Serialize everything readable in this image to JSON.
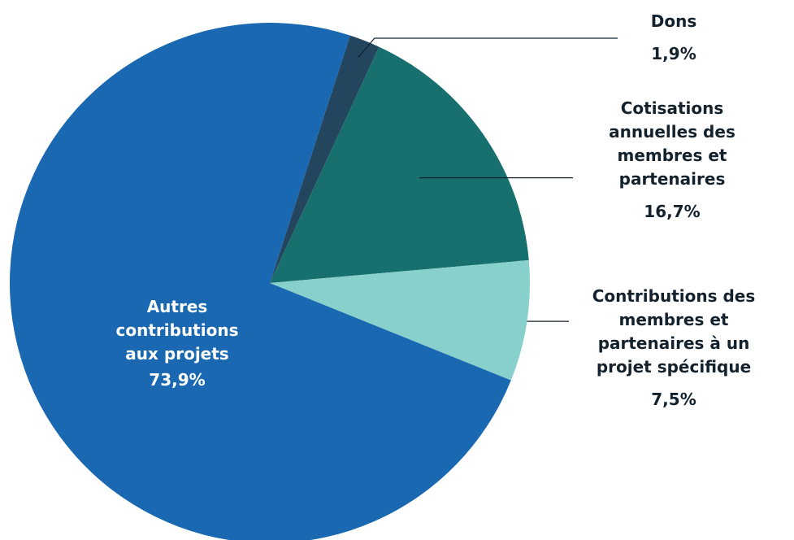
{
  "chart_data": {
    "type": "pie",
    "title": "",
    "colors": {
      "autres": "#1a68b1",
      "dons": "#23455e",
      "cotisations": "#17706d",
      "contributions": "#88d0cb",
      "text_dark": "#14222e",
      "text_light": "#ffffff"
    },
    "slices": [
      {
        "key": "dons",
        "label_lines": [
          "Dons"
        ],
        "value": 1.9,
        "value_label": "1,9%",
        "color": "#23455e"
      },
      {
        "key": "cotisations",
        "label_lines": [
          "Cotisations",
          "annuelles des",
          "membres et",
          "partenaires"
        ],
        "value": 16.7,
        "value_label": "16,7%",
        "color": "#17706d"
      },
      {
        "key": "contributions",
        "label_lines": [
          "Contributions des",
          "membres et",
          "partenaires à un",
          "projet spécifique"
        ],
        "value": 7.5,
        "value_label": "7,5%",
        "color": "#88d0cb"
      },
      {
        "key": "autres",
        "label_lines": [
          "Autres",
          "contributions",
          "aux projets"
        ],
        "value": 73.9,
        "value_label": "73,9%",
        "color": "#1a68b1"
      }
    ]
  }
}
